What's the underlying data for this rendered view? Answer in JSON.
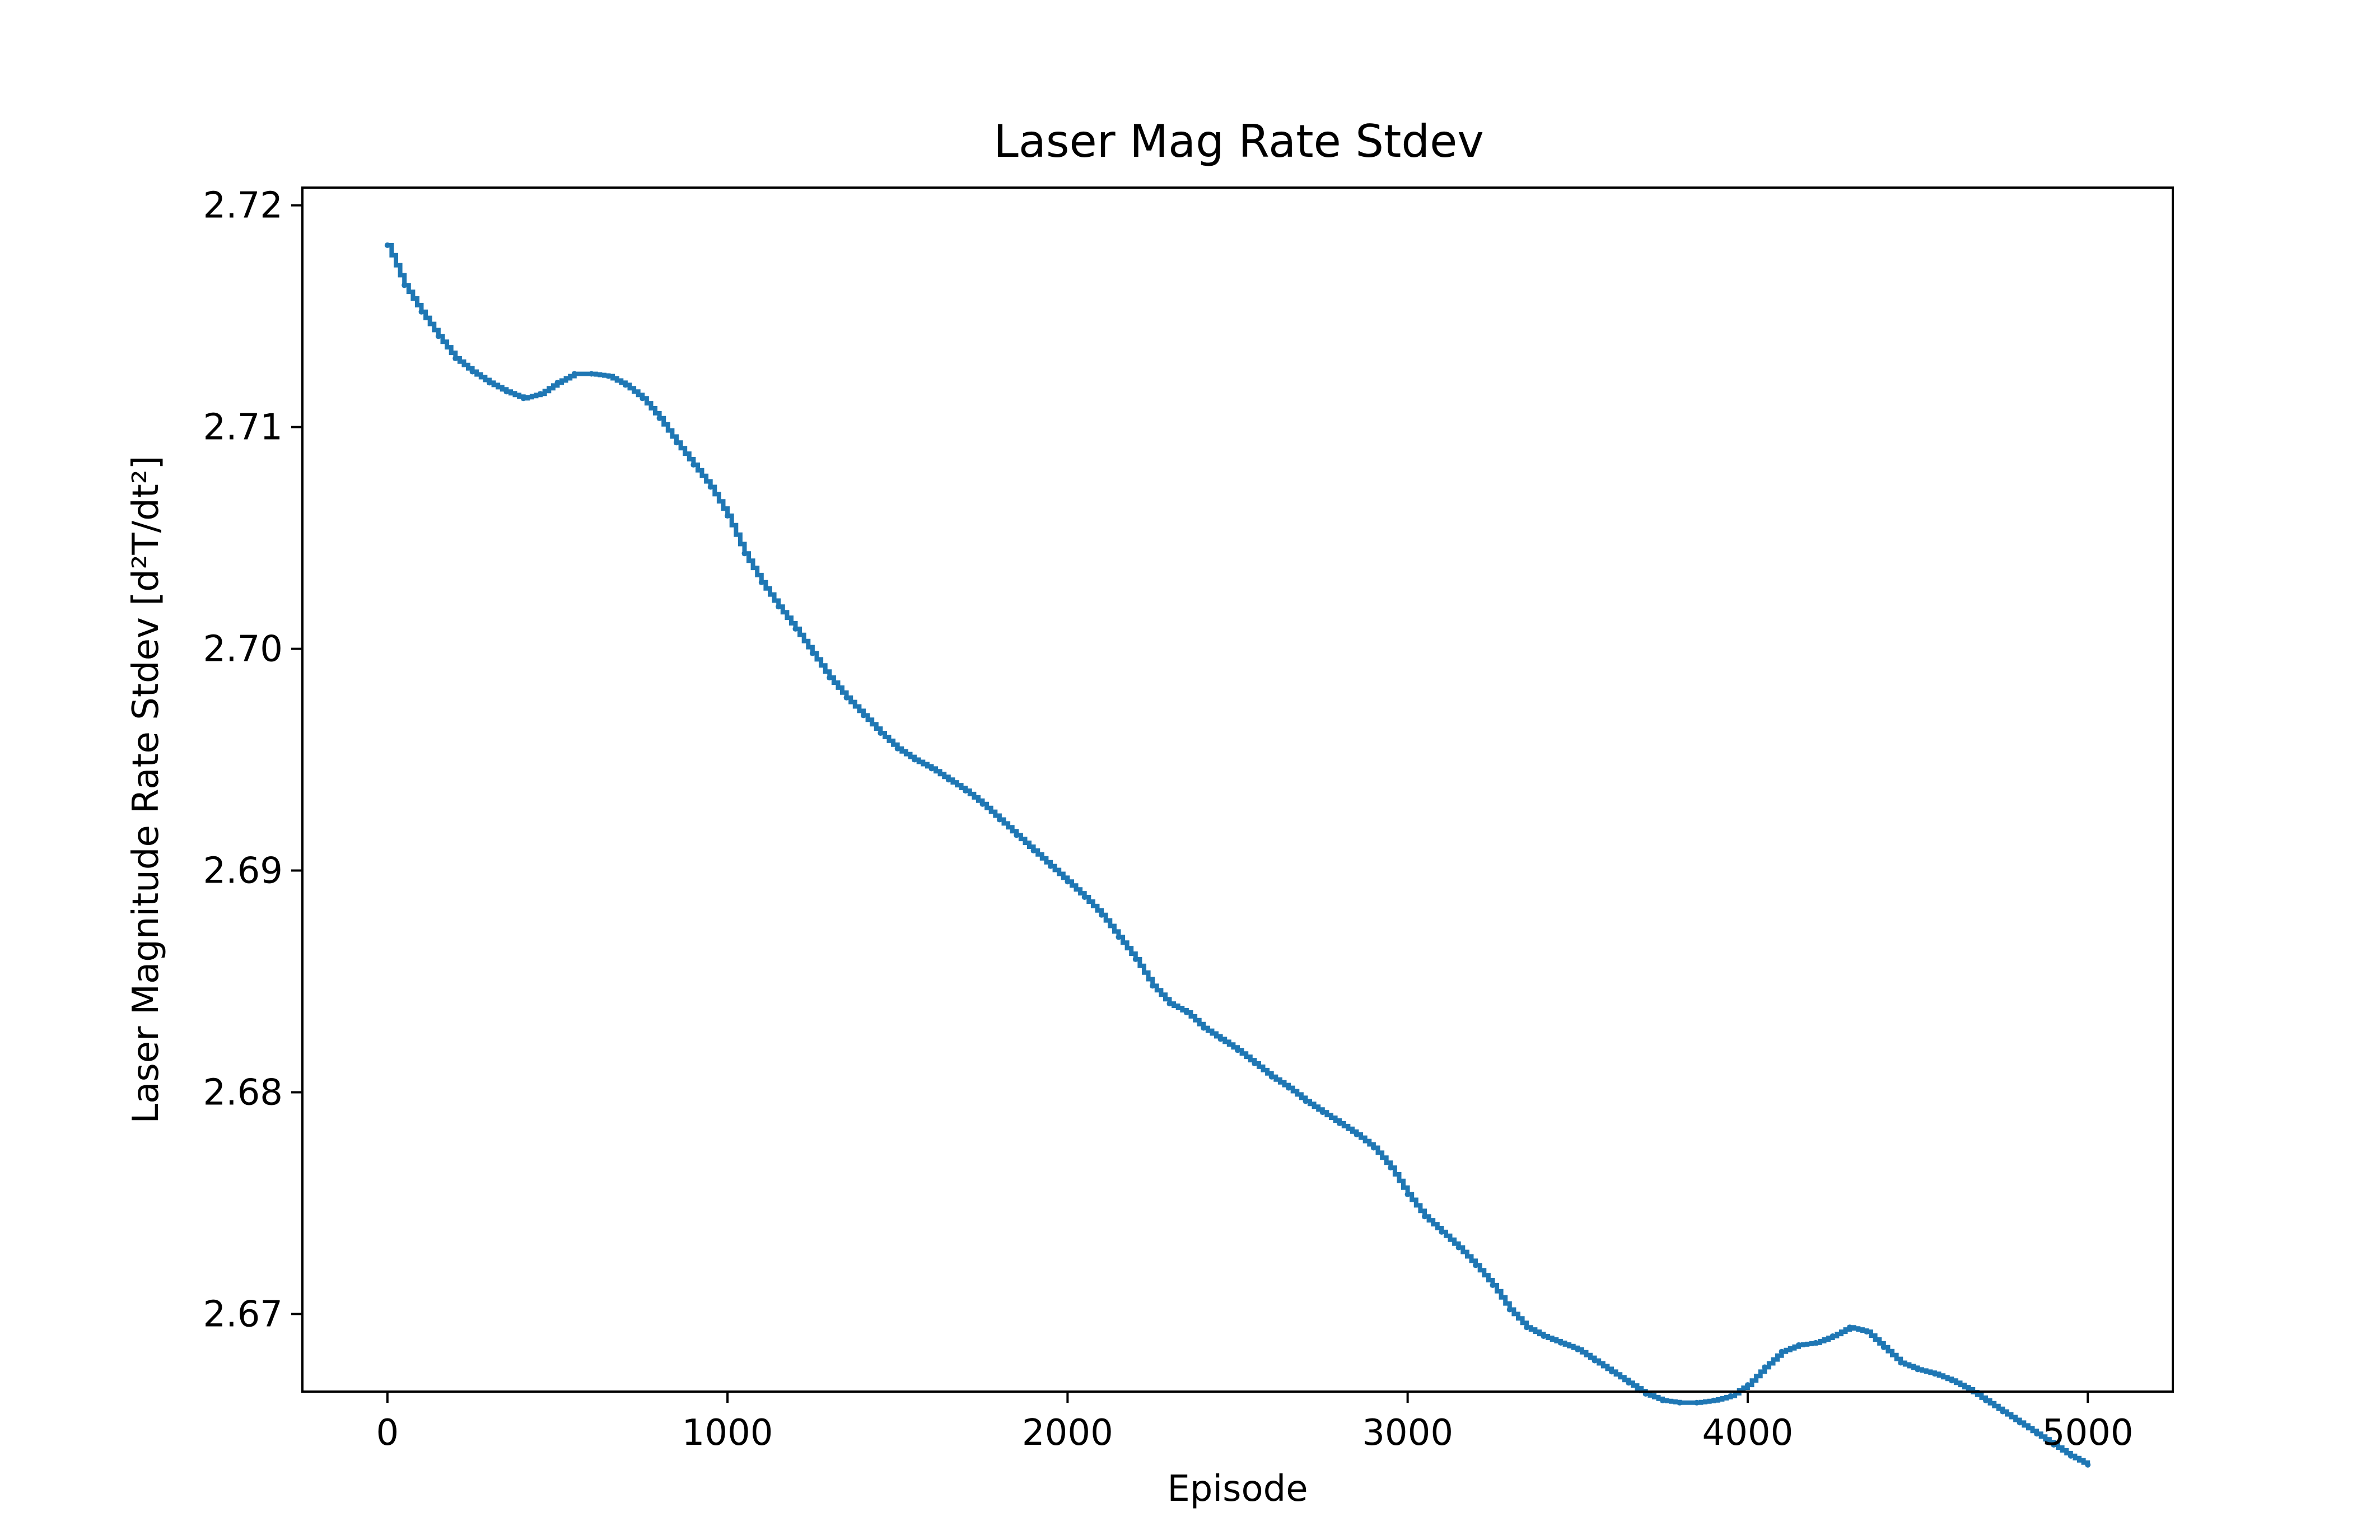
{
  "chart_data": {
    "type": "line",
    "title": "Laser Mag Rate Stdev",
    "xlabel": "Episode",
    "ylabel": "Laser Magnitude Rate Stdev [d²T/dt²]",
    "xlim": [
      -250,
      5250
    ],
    "ylim": [
      2.6665,
      2.7208
    ],
    "xticks": [
      0,
      1000,
      2000,
      3000,
      4000,
      5000
    ],
    "xtick_labels": [
      "0",
      "1000",
      "2000",
      "3000",
      "4000",
      "5000"
    ],
    "yticks": [
      2.67,
      2.68,
      2.69,
      2.7,
      2.71,
      2.72
    ],
    "ytick_labels": [
      "2.67",
      "2.68",
      "2.69",
      "2.70",
      "2.71",
      "2.72"
    ],
    "grid": false,
    "legend": "none",
    "line_color": "#1f77b4",
    "series": [
      {
        "x": [
          0,
          50,
          100,
          150,
          200,
          250,
          300,
          350,
          400,
          450,
          500,
          550,
          600,
          650,
          700,
          750,
          800,
          850,
          900,
          950,
          1000,
          1050,
          1100,
          1150,
          1200,
          1250,
          1300,
          1350,
          1400,
          1450,
          1500,
          1550,
          1600,
          1650,
          1700,
          1750,
          1800,
          1850,
          1900,
          1950,
          2000,
          2050,
          2100,
          2150,
          2200,
          2250,
          2300,
          2350,
          2400,
          2450,
          2500,
          2550,
          2600,
          2650,
          2700,
          2750,
          2800,
          2850,
          2900,
          2950,
          3000,
          3050,
          3100,
          3150,
          3200,
          3250,
          3300,
          3350,
          3400,
          3450,
          3500,
          3550,
          3600,
          3650,
          3700,
          3750,
          3800,
          3850,
          3900,
          3950,
          4000,
          4050,
          4100,
          4150,
          4200,
          4250,
          4300,
          4350,
          4400,
          4450,
          4500,
          4550,
          4600,
          4650,
          4700,
          4750,
          4800,
          4850,
          4900,
          4950,
          5000
        ],
        "y": [
          2.7182,
          2.7164,
          2.7152,
          2.7141,
          2.7131,
          2.7125,
          2.712,
          2.7116,
          2.7113,
          2.7115,
          2.712,
          2.7124,
          2.7124,
          2.7123,
          2.7119,
          2.7113,
          2.7104,
          2.7093,
          2.7083,
          2.7073,
          2.706,
          2.7043,
          2.703,
          2.7019,
          2.7009,
          2.6998,
          2.6987,
          2.6978,
          2.697,
          2.6962,
          2.6955,
          2.695,
          2.6946,
          2.6941,
          2.6936,
          2.693,
          2.6923,
          2.6916,
          2.6909,
          2.6902,
          2.6895,
          2.6888,
          2.688,
          2.687,
          2.686,
          2.6848,
          2.684,
          2.6836,
          2.6829,
          2.6824,
          2.6819,
          2.6813,
          2.6807,
          2.6802,
          2.6796,
          2.6791,
          2.6786,
          2.6781,
          2.6775,
          2.6766,
          2.6754,
          2.6744,
          2.6737,
          2.673,
          2.6722,
          2.6713,
          2.6702,
          2.6694,
          2.669,
          2.6687,
          2.6684,
          2.6679,
          2.6674,
          2.6669,
          2.6664,
          2.6661,
          2.666,
          2.666,
          2.6661,
          2.6663,
          2.6668,
          2.6676,
          2.6683,
          2.6686,
          2.6687,
          2.669,
          2.6694,
          2.6692,
          2.6685,
          2.6678,
          2.6675,
          2.6673,
          2.667,
          2.6666,
          2.6661,
          2.6656,
          2.6651,
          2.6646,
          2.6641,
          2.6636,
          2.6632
        ]
      }
    ]
  }
}
